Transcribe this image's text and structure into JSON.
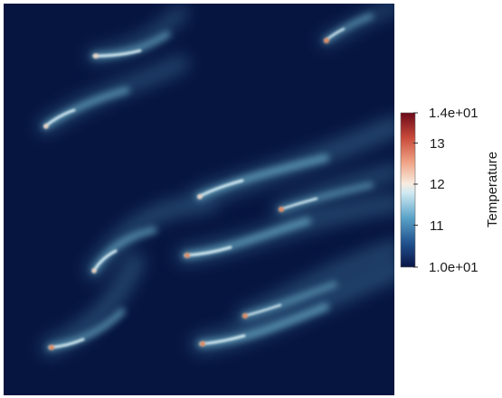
{
  "colorbar": {
    "title": "Temperature",
    "max_label": "1.4e+01",
    "min_label": "1.0e+01",
    "tick_labels": [
      "13",
      "12",
      "11"
    ],
    "range": [
      10,
      14
    ],
    "colormap": "Cool to Warm (Extended)",
    "stops": [
      "#0a1445",
      "#1f4f8c",
      "#5ba3c9",
      "#cfe9f2",
      "#f8ece0",
      "#f0a385",
      "#c8493a",
      "#6b0a1a"
    ]
  },
  "colors": {
    "background": "#ffffff",
    "field_base": "#061540",
    "plume_core": "#e6f3f8",
    "plume_mid": "#8ec9da",
    "source_hot": "#e08a62"
  }
}
